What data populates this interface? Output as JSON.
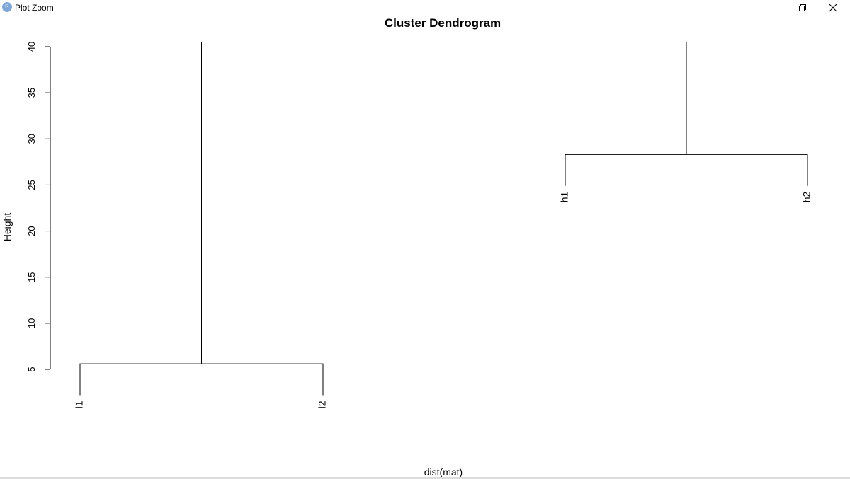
{
  "window": {
    "title": "Plot Zoom",
    "app_icon_letter": "R",
    "controls": [
      "minimize",
      "restore",
      "close"
    ]
  },
  "chart_data": {
    "type": "dendrogram",
    "title": "Cluster Dendrogram",
    "xlabel": "dist(mat)",
    "ylabel": "Height",
    "yticks": [
      5,
      10,
      15,
      20,
      25,
      30,
      35,
      40
    ],
    "ylim": [
      5,
      40
    ],
    "leaves": [
      "l1",
      "l2",
      "h1",
      "h2"
    ],
    "leaf_heights": [
      2.2,
      2.2,
      24.9,
      24.9
    ],
    "merges": [
      {
        "left": "l1",
        "right": "l2",
        "height": 5.6
      },
      {
        "left": "h1",
        "right": "h2",
        "height": 28.3
      },
      {
        "left": "l1+l2",
        "right": "h1+h2",
        "height": 40.5
      }
    ]
  }
}
